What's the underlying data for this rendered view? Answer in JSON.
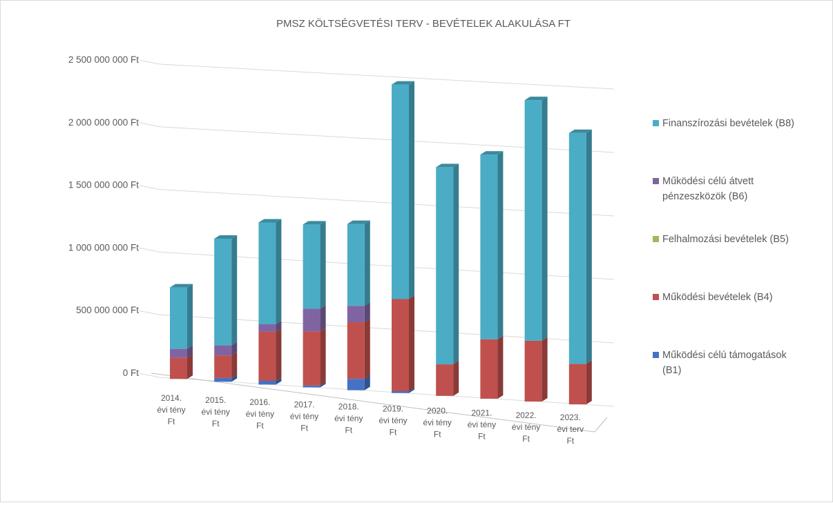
{
  "chart_data": {
    "type": "bar",
    "stacked": true,
    "view": "3d-perspective",
    "title": "PMSZ KÖLTSÉGVETÉSI TERV - BEVÉTELEK ALAKULÁSA FT",
    "categories": [
      [
        "2014.",
        "évi tény",
        "Ft"
      ],
      [
        "2015.",
        "évi tény",
        "Ft"
      ],
      [
        "2016.",
        "évi tény",
        "Ft"
      ],
      [
        "2017.",
        "évi tény",
        "Ft"
      ],
      [
        "2018.",
        "évi tény",
        "Ft"
      ],
      [
        "2019.",
        "évi tény",
        "Ft"
      ],
      [
        "2020.",
        "évi tény",
        "Ft"
      ],
      [
        "2021.",
        "évi tény",
        "Ft"
      ],
      [
        "2022.",
        "évi tény",
        "Ft"
      ],
      [
        "2023.",
        "évi terv",
        "Ft"
      ]
    ],
    "y_ticks": [
      "0 Ft",
      "500 000 000 Ft",
      "1 000 000 000 Ft",
      "1 500 000 000 Ft",
      "2 000 000 000 Ft",
      "2 500 000 000 Ft"
    ],
    "ylim": [
      0,
      2500000000
    ],
    "grid": true,
    "legend_position": "right",
    "series": [
      {
        "name": "Működési célú támogatások (B1)",
        "color": "#4472c4",
        "values": [
          0,
          30000000,
          30000000,
          15000000,
          90000000,
          15000000,
          0,
          0,
          0,
          0
        ]
      },
      {
        "name": "Működési bevételek (B4)",
        "color": "#c0504d",
        "values": [
          170000000,
          180000000,
          390000000,
          430000000,
          450000000,
          730000000,
          250000000,
          470000000,
          480000000,
          320000000
        ]
      },
      {
        "name": "Felhalmozási bevételek (B5)",
        "color": "#9bbb59",
        "values": [
          0,
          0,
          0,
          0,
          0,
          0,
          0,
          0,
          0,
          0
        ]
      },
      {
        "name": "Működési célú átvett pénzeszközök (B6)",
        "color": "#8064a2",
        "values": [
          70000000,
          80000000,
          60000000,
          180000000,
          130000000,
          0,
          0,
          0,
          0,
          0
        ]
      },
      {
        "name": "Finanszírozási bevételek (B8)",
        "color": "#4bacc6",
        "values": [
          490000000,
          850000000,
          810000000,
          670000000,
          650000000,
          1700000000,
          1560000000,
          1460000000,
          1900000000,
          1820000000
        ]
      }
    ],
    "legend_order": [
      {
        "label": [
          "Finanszírozási bevételek (B8)"
        ],
        "color": "#4bacc6"
      },
      {
        "label": [
          "Működési célú átvett",
          "pénzeszközök (B6)"
        ],
        "color": "#8064a2"
      },
      {
        "label": [
          "Felhalmozási bevételek (B5)"
        ],
        "color": "#9bbb59"
      },
      {
        "label": [
          "Működési bevételek (B4)"
        ],
        "color": "#c0504d"
      },
      {
        "label": [
          "Működési célú támogatások",
          "(B1)"
        ],
        "color": "#4472c4"
      }
    ]
  }
}
